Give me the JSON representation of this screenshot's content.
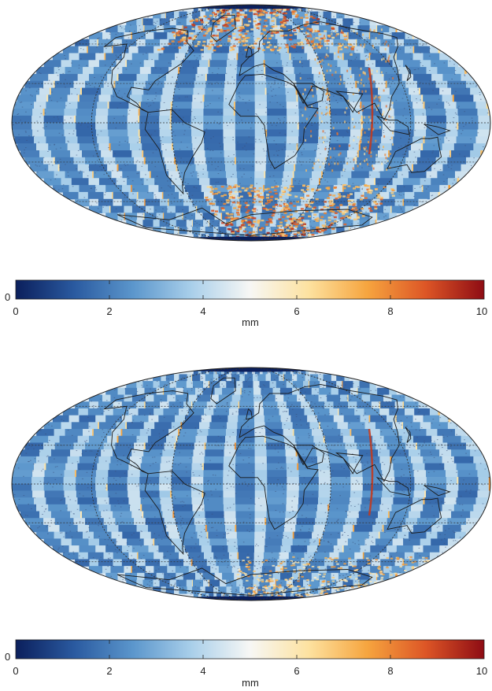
{
  "colormap": {
    "stops": [
      "#0b1f5c",
      "#2a5aa0",
      "#5b96cc",
      "#a9cfea",
      "#f7f7f5",
      "#fde2a0",
      "#f6a53f",
      "#dd5626",
      "#8e0c14"
    ],
    "land_outline_color": "#1a1a1a",
    "graticule_color": "#333333"
  },
  "panels": [
    {
      "id": "top",
      "stripe_pattern": "strong-polar",
      "colorbar": {
        "left_label": "0",
        "ticks": [
          "0",
          "2",
          "4",
          "6",
          "8",
          "10"
        ],
        "unit": "mm",
        "range": [
          0,
          10
        ]
      }
    },
    {
      "id": "bottom",
      "stripe_pattern": "weak-polar",
      "colorbar": {
        "left_label": "0",
        "ticks": [
          "0",
          "2",
          "4",
          "6",
          "8",
          "10"
        ],
        "unit": "mm",
        "range": [
          0,
          10
        ]
      }
    }
  ]
}
